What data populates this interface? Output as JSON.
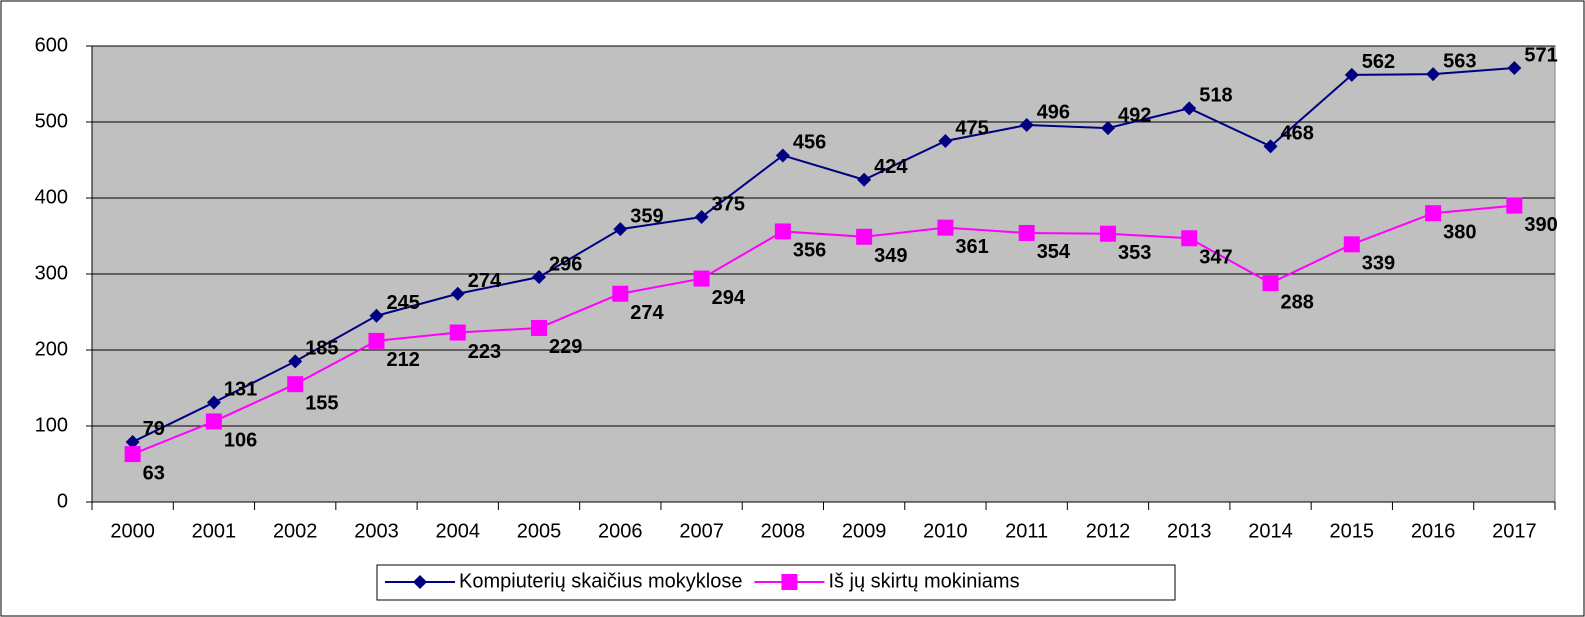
{
  "chart_data": {
    "type": "line",
    "categories": [
      "2000",
      "2001",
      "2002",
      "2003",
      "2004",
      "2005",
      "2006",
      "2007",
      "2008",
      "2009",
      "2010",
      "2011",
      "2012",
      "2013",
      "2014",
      "2015",
      "2016",
      "2017"
    ],
    "series": [
      {
        "name": "Kompiuterių skaičius mokyklose",
        "color": "#000080",
        "marker": "diamond",
        "values": [
          79,
          131,
          185,
          245,
          274,
          296,
          359,
          375,
          456,
          424,
          475,
          496,
          492,
          518,
          468,
          562,
          563,
          571
        ]
      },
      {
        "name": "Iš jų skirtų mokiniams",
        "color": "#ff00ff",
        "marker": "square",
        "values": [
          63,
          106,
          155,
          212,
          223,
          229,
          274,
          294,
          356,
          349,
          361,
          354,
          353,
          347,
          288,
          339,
          380,
          390
        ]
      }
    ],
    "ylim": [
      0,
      600
    ],
    "yticks": [
      0,
      100,
      200,
      300,
      400,
      500,
      600
    ],
    "grid": true,
    "legend": "bottom"
  }
}
